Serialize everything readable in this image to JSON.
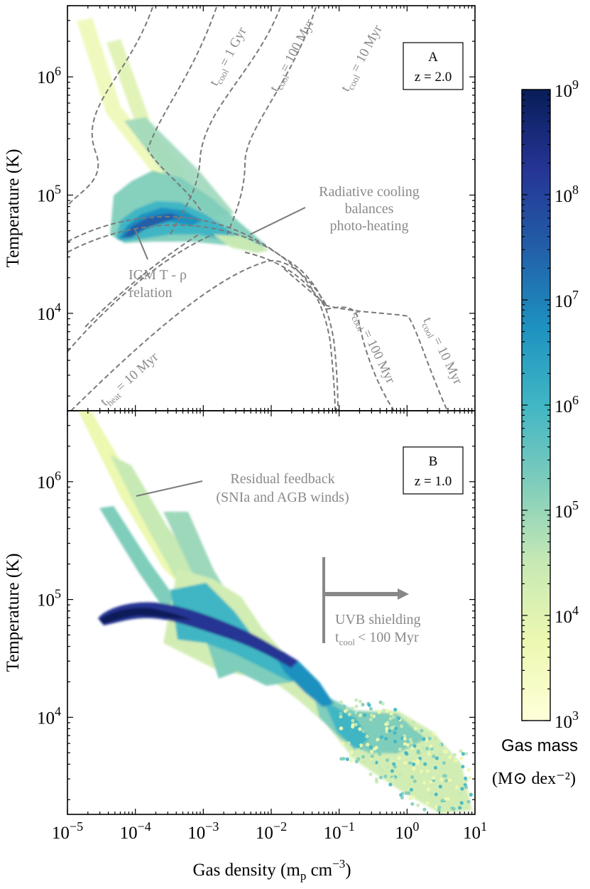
{
  "chart_data": [
    {
      "type": "heatmap",
      "panel_label": "A",
      "redshift_label": "z = 2.0",
      "xlabel": "",
      "ylabel": "Temperature (K)",
      "xscale": "log",
      "yscale": "log",
      "xlim": [
        1e-05,
        10
      ],
      "ylim": [
        1500,
        4000000
      ],
      "yticks": [
        {
          "value": 10000,
          "label": "10^4"
        },
        {
          "value": 100000,
          "label": "10^5"
        },
        {
          "value": 1000000,
          "label": "10^6"
        }
      ],
      "annotations": [
        {
          "text": "Radiative cooling",
          "x": 0.05,
          "y": 92000
        },
        {
          "text": "balances",
          "x": 0.05,
          "y": 64000
        },
        {
          "text": "photo-heating",
          "x": 0.05,
          "y": 44000
        },
        {
          "text": "IGM T - ρ",
          "x": 0.0004,
          "y": 22000
        },
        {
          "text": "relation",
          "x": 0.0004,
          "y": 14500
        }
      ],
      "curve_labels": [
        {
          "sub": "cool",
          "value": "= 1 Gyr"
        },
        {
          "sub": "cool",
          "value": "= 100 Myr"
        },
        {
          "sub": "cool",
          "value": "= 10 Myr"
        },
        {
          "sub": "cool",
          "value": "= 100 Myr"
        },
        {
          "sub": "cool",
          "value": "= 10 Myr"
        },
        {
          "sub": "heat",
          "value": "= 10 Myr"
        }
      ],
      "distribution": [
        {
          "x": 3e-05,
          "y": 38000,
          "mass": 100000000
        },
        {
          "x": 0.0001,
          "y": 50000,
          "mass": 80000000
        },
        {
          "x": 0.0003,
          "y": 60000,
          "mass": 50000000
        },
        {
          "x": 0.001,
          "y": 55000,
          "mass": 10000000
        },
        {
          "x": 0.003,
          "y": 40000,
          "mass": 1000000
        },
        {
          "x": 0.008,
          "y": 32000,
          "mass": 100000
        },
        {
          "x": 0.0002,
          "y": 150000,
          "mass": 1000000
        },
        {
          "x": 2e-05,
          "y": 2000000,
          "mass": 1000
        }
      ]
    },
    {
      "type": "heatmap",
      "panel_label": "B",
      "redshift_label": "z = 1.0",
      "xlabel": "Gas density (m_p cm^-3)",
      "ylabel": "Temperature (K)",
      "xscale": "log",
      "yscale": "log",
      "xlim": [
        1e-05,
        10
      ],
      "ylim": [
        1500,
        4000000
      ],
      "xticks": [
        {
          "value": 1e-05,
          "label": "10^-5"
        },
        {
          "value": 0.0001,
          "label": "10^-4"
        },
        {
          "value": 0.001,
          "label": "10^-3"
        },
        {
          "value": 0.01,
          "label": "10^-2"
        },
        {
          "value": 0.1,
          "label": "10^-1"
        },
        {
          "value": 1,
          "label": "10^0"
        },
        {
          "value": 10,
          "label": "10^1"
        }
      ],
      "yticks": [
        {
          "value": 10000,
          "label": "10^4"
        },
        {
          "value": 100000,
          "label": "10^5"
        },
        {
          "value": 1000000,
          "label": "10^6"
        }
      ],
      "annotations": [
        {
          "text": "Residual feedback",
          "x": 0.012,
          "y": 900000
        },
        {
          "text": "(SNIa and AGB winds)",
          "x": 0.012,
          "y": 620000
        },
        {
          "text": "UVB shielding",
          "x": 0.6,
          "y": 55000
        }
      ],
      "shielding_label": {
        "prefix": "t",
        "sub": "cool",
        "value": "< 100 Myr"
      },
      "distribution": [
        {
          "x": 3e-05,
          "y": 40000,
          "mass": 1000000000
        },
        {
          "x": 0.0001,
          "y": 55000,
          "mass": 900000000
        },
        {
          "x": 0.0003,
          "y": 55000,
          "mass": 300000000
        },
        {
          "x": 0.001,
          "y": 45000,
          "mass": 100000000
        },
        {
          "x": 0.01,
          "y": 28000,
          "mass": 30000000
        },
        {
          "x": 0.05,
          "y": 15000,
          "mass": 10000000
        },
        {
          "x": 0.3,
          "y": 6000,
          "mass": 1000000
        },
        {
          "x": 3,
          "y": 2500,
          "mass": 100000
        }
      ]
    }
  ],
  "colorbar": {
    "label_line1": "Gas mass",
    "label_line2": "(M⊙ dex⁻²)",
    "range": [
      1000,
      1000000000
    ],
    "ticks": [
      {
        "value": 1000,
        "label": "10^3"
      },
      {
        "value": 10000,
        "label": "10^4"
      },
      {
        "value": 100000,
        "label": "10^5"
      },
      {
        "value": 1000000,
        "label": "10^6"
      },
      {
        "value": 10000000,
        "label": "10^7"
      },
      {
        "value": 100000000,
        "label": "10^8"
      },
      {
        "value": 1000000000,
        "label": "10^9"
      }
    ],
    "colormap": [
      "#ffffd9",
      "#edf8b1",
      "#c7e9b4",
      "#7fcdbb",
      "#41b6c4",
      "#1d91c0",
      "#225ea8",
      "#253494",
      "#081d58"
    ]
  }
}
